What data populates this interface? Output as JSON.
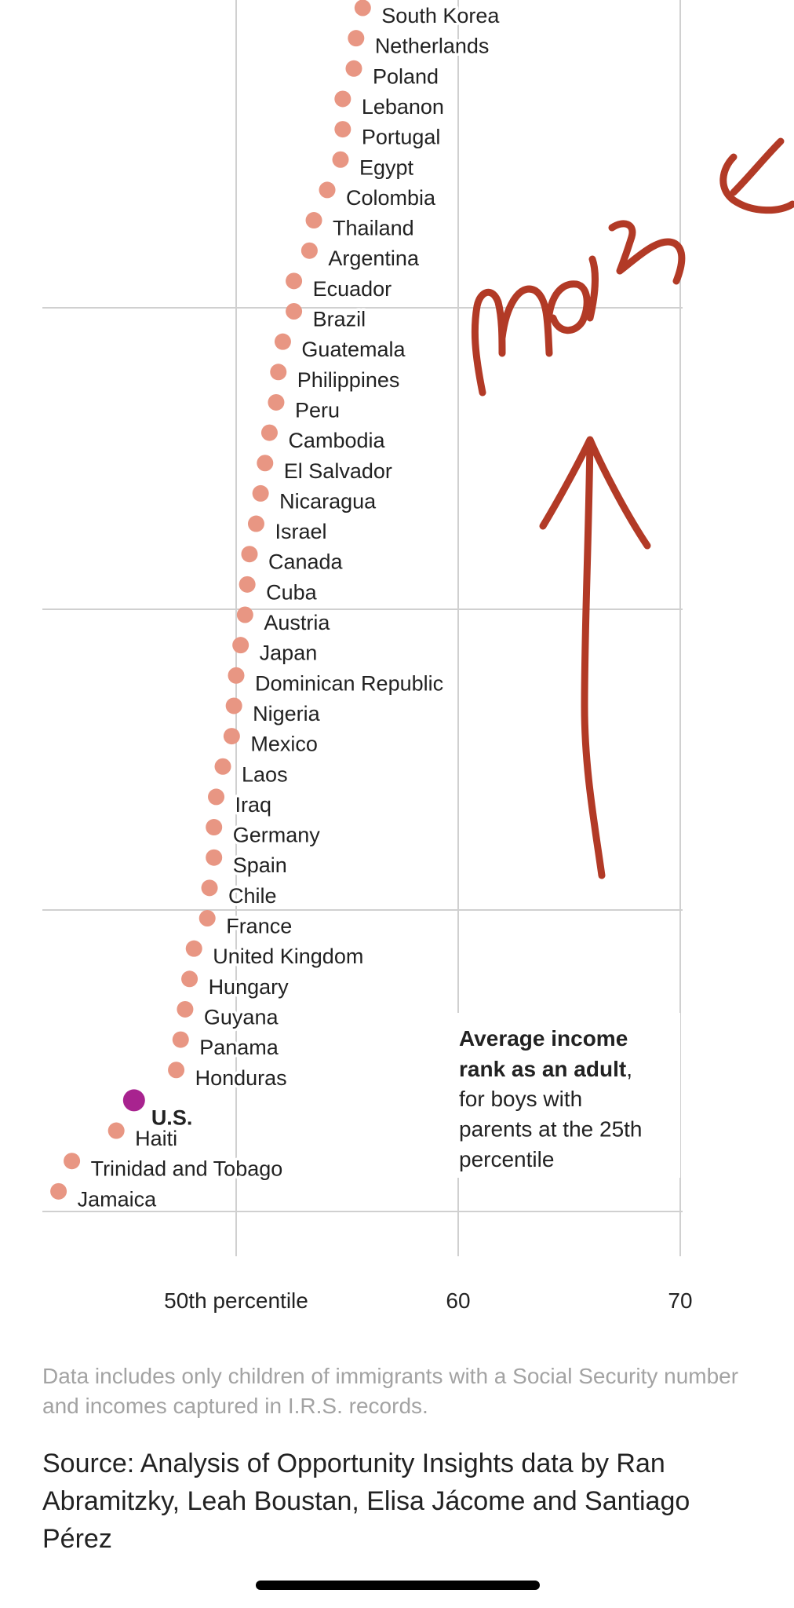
{
  "chart_data": {
    "type": "scatter",
    "title": "",
    "xlabel": "",
    "ylabel": "",
    "x_ticks": [
      {
        "value": 50,
        "label": "50th percentile"
      },
      {
        "value": 60,
        "label": "60"
      },
      {
        "value": 70,
        "label": "70"
      }
    ],
    "xlim": [
      40.8,
      70
    ],
    "grid": true,
    "series": [
      {
        "color": "#e89683",
        "points": [
          {
            "label": "South Korea",
            "x": 55.7
          },
          {
            "label": "Netherlands",
            "x": 55.4
          },
          {
            "label": "Poland",
            "x": 55.3
          },
          {
            "label": "Lebanon",
            "x": 54.8
          },
          {
            "label": "Portugal",
            "x": 54.8
          },
          {
            "label": "Egypt",
            "x": 54.7
          },
          {
            "label": "Colombia",
            "x": 54.1
          },
          {
            "label": "Thailand",
            "x": 53.5
          },
          {
            "label": "Argentina",
            "x": 53.3
          },
          {
            "label": "Ecuador",
            "x": 52.6
          },
          {
            "label": "Brazil",
            "x": 52.6
          },
          {
            "label": "Guatemala",
            "x": 52.1
          },
          {
            "label": "Philippines",
            "x": 51.9
          },
          {
            "label": "Peru",
            "x": 51.8
          },
          {
            "label": "Cambodia",
            "x": 51.5
          },
          {
            "label": "El Salvador",
            "x": 51.3
          },
          {
            "label": "Nicaragua",
            "x": 51.1
          },
          {
            "label": "Israel",
            "x": 50.9
          },
          {
            "label": "Canada",
            "x": 50.6
          },
          {
            "label": "Cuba",
            "x": 50.5
          },
          {
            "label": "Austria",
            "x": 50.4
          },
          {
            "label": "Japan",
            "x": 50.2
          },
          {
            "label": "Dominican Republic",
            "x": 50.0
          },
          {
            "label": "Nigeria",
            "x": 49.9
          },
          {
            "label": "Mexico",
            "x": 49.8
          },
          {
            "label": "Laos",
            "x": 49.4
          },
          {
            "label": "Iraq",
            "x": 49.1
          },
          {
            "label": "Germany",
            "x": 49.0
          },
          {
            "label": "Spain",
            "x": 49.0
          },
          {
            "label": "Chile",
            "x": 48.8
          },
          {
            "label": "France",
            "x": 48.7
          },
          {
            "label": "United Kingdom",
            "x": 48.1
          },
          {
            "label": "Hungary",
            "x": 47.9
          },
          {
            "label": "Guyana",
            "x": 47.7
          },
          {
            "label": "Panama",
            "x": 47.5
          },
          {
            "label": "Honduras",
            "x": 47.3
          }
        ]
      },
      {
        "color": "#a8238f",
        "points": [
          {
            "label": "U.S.",
            "x": 45.4
          }
        ]
      },
      {
        "color": "#e89683",
        "points": [
          {
            "label": "Haiti",
            "x": 44.6
          },
          {
            "label": "Trinidad and Tobago",
            "x": 42.6
          },
          {
            "label": "Jamaica",
            "x": 42.0
          }
        ]
      }
    ],
    "annotation": {
      "bold": "Average income rank as an adult",
      "comma": ",",
      "lines": [
        "for boys with",
        "parents at the 25th",
        "percentile"
      ]
    }
  },
  "handwriting": "more",
  "footnote": "Data includes only children of immigrants with a Social Security number and incomes captured in I.R.S. records.",
  "source": "Source: Analysis of Opportunity Insights data by Ran Abramitzky, Leah Boustan, Elisa Jácome and Santiago Pérez",
  "colors": {
    "dot": "#e89683",
    "us_dot": "#a8238f",
    "grid": "#d0d0d0",
    "ink": "#b23a26"
  }
}
